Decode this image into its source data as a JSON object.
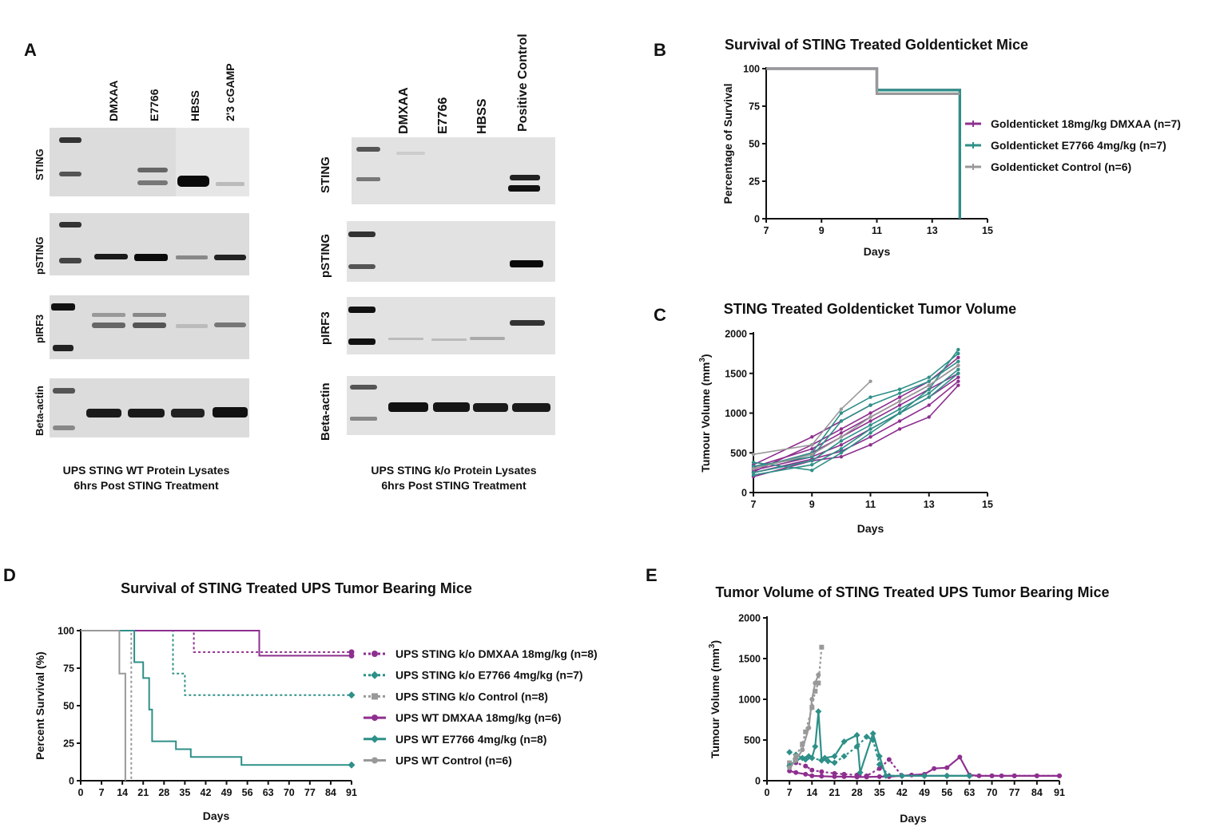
{
  "panels": {
    "a": "A",
    "b": "B",
    "c": "C",
    "d": "D",
    "e": "E"
  },
  "panel_a": {
    "left_lanes": [
      "DMXAA",
      "E7766",
      "HBSS",
      "2'3 cGAMP"
    ],
    "right_lanes": [
      "DMXAA",
      "E7766",
      "HBSS",
      "Positive  Control"
    ],
    "left_blots": [
      "STING",
      "pSTING",
      "pIRF3",
      "Beta-actin"
    ],
    "right_blots": [
      "STING",
      "pSTING",
      "pIRF3",
      "Beta-actin"
    ],
    "left_caption_1": "UPS STING WT Protein Lysates",
    "left_caption_2": "6hrs Post STING Treatment",
    "right_caption_1": "UPS STING k/o Protein Lysates",
    "right_caption_2": "6hrs Post STING Treatment"
  },
  "chart_data": [
    {
      "id": "B",
      "type": "line",
      "title": "Survival of STING Treated Goldenticket Mice",
      "xlabel": "Days",
      "ylabel": "Percentage of Survival",
      "xlim": [
        7,
        15
      ],
      "ylim": [
        0,
        100
      ],
      "xticks": [
        7,
        9,
        11,
        13,
        15
      ],
      "yticks": [
        0,
        25,
        50,
        75,
        100
      ],
      "grid": false,
      "legend": "right",
      "series": [
        {
          "name": "Goldenticket 18mg/kg DMXAA (n=7)",
          "color": "#8e2f8f",
          "x": [
            7,
            11,
            11,
            14,
            14
          ],
          "y": [
            100,
            100,
            85.7,
            85.7,
            0
          ]
        },
        {
          "name": "Goldenticket E7766 4mg/kg (n=7)",
          "color": "#2e9088",
          "x": [
            7,
            11,
            11,
            14,
            14
          ],
          "y": [
            100,
            100,
            85.7,
            85.7,
            0
          ]
        },
        {
          "name": "Goldenticket Control (n=6)",
          "color": "#999999",
          "x": [
            7,
            11,
            11,
            14
          ],
          "y": [
            100,
            100,
            83.3,
            83.3
          ]
        }
      ]
    },
    {
      "id": "C",
      "type": "line",
      "title": "STING Treated Goldenticket Tumor Volume",
      "xlabel": "Days",
      "ylabel": "Tumour Volume (mm",
      "ylabel_sup": "3",
      "ylabel_end": ")",
      "xlim": [
        7,
        15
      ],
      "ylim": [
        0,
        2000
      ],
      "xticks": [
        7,
        9,
        11,
        13,
        15
      ],
      "yticks": [
        0,
        500,
        1000,
        1500,
        2000
      ],
      "grid": false,
      "series": [
        {
          "color": "#8e2f8f",
          "x": [
            7,
            9,
            10,
            11,
            12,
            13,
            14
          ],
          "y": [
            200,
            400,
            450,
            600,
            800,
            950,
            1350
          ]
        },
        {
          "color": "#8e2f8f",
          "x": [
            7,
            9,
            10,
            11,
            12,
            13,
            14
          ],
          "y": [
            250,
            420,
            520,
            700,
            900,
            1100,
            1400
          ]
        },
        {
          "color": "#8e2f8f",
          "x": [
            7,
            9,
            10,
            11,
            12,
            13,
            14
          ],
          "y": [
            280,
            450,
            600,
            800,
            1000,
            1200,
            1450
          ]
        },
        {
          "color": "#8e2f8f",
          "x": [
            7,
            9,
            10,
            11,
            12,
            13,
            14
          ],
          "y": [
            300,
            500,
            700,
            900,
            1100,
            1300,
            1500
          ]
        },
        {
          "color": "#8e2f8f",
          "x": [
            7,
            9,
            10,
            11,
            12,
            13,
            14
          ],
          "y": [
            320,
            550,
            750,
            950,
            1150,
            1350,
            1600
          ]
        },
        {
          "color": "#8e2f8f",
          "x": [
            7,
            9,
            10,
            11
          ],
          "y": [
            350,
            700,
            900,
            1100
          ]
        },
        {
          "color": "#8e2f8f",
          "x": [
            7,
            9,
            10,
            11,
            12,
            13,
            14
          ],
          "y": [
            260,
            600,
            800,
            1000,
            1200,
            1400,
            1700
          ]
        },
        {
          "color": "#2e9088",
          "x": [
            7,
            9,
            10,
            11,
            12,
            13,
            14
          ],
          "y": [
            380,
            280,
            500,
            750,
            1000,
            1300,
            1800
          ]
        },
        {
          "color": "#2e9088",
          "x": [
            7,
            9,
            10,
            11,
            12,
            13,
            14
          ],
          "y": [
            300,
            500,
            1000,
            1200,
            1300,
            1450,
            1750
          ]
        },
        {
          "color": "#2e9088",
          "x": [
            7,
            9,
            10,
            11,
            12,
            13,
            14
          ],
          "y": [
            250,
            400,
            650,
            850,
            1050,
            1250,
            1550
          ]
        },
        {
          "color": "#2e9088",
          "x": [
            7,
            9,
            10,
            11,
            12,
            13,
            14
          ],
          "y": [
            220,
            350,
            550,
            800,
            1000,
            1200,
            1500
          ]
        },
        {
          "color": "#2e9088",
          "x": [
            7,
            9,
            10,
            11,
            12,
            13,
            14
          ],
          "y": [
            330,
            450,
            900,
            1100,
            1250,
            1400,
            1650
          ]
        },
        {
          "color": "#999999",
          "x": [
            7,
            9,
            10,
            11
          ],
          "y": [
            480,
            600,
            1050,
            1400
          ]
        },
        {
          "color": "#999999",
          "x": [
            7,
            9,
            10,
            11,
            12,
            13,
            14
          ],
          "y": [
            300,
            480,
            700,
            950,
            1150,
            1350,
            1600
          ]
        }
      ]
    },
    {
      "id": "D",
      "type": "line",
      "title": "Survival of  STING Treated UPS Tumor Bearing Mice",
      "xlabel": "Days",
      "ylabel": "Percent Survival (%)",
      "xlim": [
        0,
        91
      ],
      "ylim": [
        0,
        100
      ],
      "xticks": [
        0,
        7,
        14,
        21,
        28,
        35,
        42,
        49,
        56,
        63,
        70,
        77,
        84,
        91
      ],
      "yticks": [
        0,
        25,
        50,
        75,
        100
      ],
      "grid": false,
      "legend": "right",
      "series": [
        {
          "name": "UPS STING k/o DMXAA 18mg/kg (n=8)",
          "color": "#8e2f8f",
          "dashed": true,
          "marker": "circle",
          "x": [
            0,
            38,
            38,
            91
          ],
          "y": [
            100,
            100,
            85.7,
            85.7
          ]
        },
        {
          "name": "UPS STING k/o E7766 4mg/kg (n=7)",
          "color": "#2e9088",
          "dashed": true,
          "marker": "diamond",
          "x": [
            0,
            31,
            31,
            35,
            35,
            91
          ],
          "y": [
            100,
            100,
            71.4,
            71.4,
            57.1,
            57.1
          ]
        },
        {
          "name": "UPS STING k/o Control (n=8)",
          "color": "#999999",
          "dashed": true,
          "marker": "square",
          "x": [
            0,
            17,
            17
          ],
          "y": [
            100,
            100,
            0
          ]
        },
        {
          "name": "UPS WT DMXAA 18mg/kg (n=6)",
          "color": "#8e2f8f",
          "dashed": false,
          "marker": "circle",
          "x": [
            0,
            60,
            60,
            91
          ],
          "y": [
            100,
            100,
            83.3,
            83.3
          ]
        },
        {
          "name": "UPS WT E7766 4mg/kg (n=8)",
          "color": "#2e9088",
          "dashed": false,
          "marker": "diamond",
          "x": [
            0,
            18,
            18,
            21,
            21,
            23,
            23,
            24,
            24,
            32,
            32,
            37,
            37,
            54,
            54,
            91
          ],
          "y": [
            100,
            100,
            79,
            79,
            68.4,
            68.4,
            47.4,
            47.4,
            26.3,
            26.3,
            21,
            21,
            15.8,
            15.8,
            10.5,
            10.5
          ]
        },
        {
          "name": "UPS WT Control (n=6)",
          "color": "#999999",
          "dashed": false,
          "marker": "circle",
          "x": [
            0,
            13,
            13,
            15,
            15
          ],
          "y": [
            100,
            100,
            71.4,
            71.4,
            0
          ]
        }
      ]
    },
    {
      "id": "E",
      "type": "line",
      "title": "Tumor Volume of  STING Treated UPS Tumor Bearing Mice",
      "xlabel": "Days",
      "ylabel": "Tumour Volume (mm",
      "ylabel_sup": "3",
      "ylabel_end": ")",
      "xlim": [
        0,
        91
      ],
      "ylim": [
        0,
        2000
      ],
      "xticks": [
        0,
        7,
        14,
        21,
        28,
        35,
        42,
        49,
        56,
        63,
        70,
        77,
        84,
        91
      ],
      "yticks": [
        0,
        500,
        1000,
        1500,
        2000
      ],
      "grid": false,
      "series": [
        {
          "name": "UPS STING k/o DMXAA 18mg/kg (n=8)",
          "color": "#8e2f8f",
          "dashed": true,
          "marker": "circle",
          "x": [
            7,
            9,
            12,
            14,
            17,
            21,
            24,
            28,
            31,
            35,
            38,
            42,
            49,
            56,
            63,
            70,
            77,
            84,
            91
          ],
          "y": [
            200,
            220,
            180,
            130,
            110,
            90,
            80,
            70,
            60,
            150,
            260,
            60,
            60,
            60,
            60,
            60,
            60,
            60,
            60
          ]
        },
        {
          "name": "UPS STING k/o E7766 4mg/kg (n=7)",
          "color": "#2e9088",
          "dashed": true,
          "marker": "diamond",
          "x": [
            7,
            9,
            12,
            14,
            17,
            19,
            21,
            24,
            28,
            31,
            33,
            35,
            38,
            42,
            49,
            56,
            63
          ],
          "y": [
            350,
            320,
            260,
            280,
            250,
            240,
            220,
            300,
            420,
            540,
            500,
            200,
            60,
            60,
            60,
            60,
            60
          ]
        },
        {
          "name": "UPS STING k/o Control (n=8)",
          "color": "#999999",
          "dashed": true,
          "marker": "square",
          "x": [
            7,
            9,
            11,
            12,
            14,
            15,
            16,
            17
          ],
          "y": [
            220,
            300,
            450,
            600,
            900,
            1100,
            1200,
            1640
          ]
        },
        {
          "name": "UPS WT DMXAA 18mg/kg (n=6)",
          "color": "#8e2f8f",
          "dashed": false,
          "marker": "circle",
          "x": [
            7,
            9,
            12,
            14,
            17,
            21,
            24,
            28,
            31,
            35,
            38,
            42,
            45,
            49,
            52,
            56,
            60,
            63,
            66,
            70,
            73,
            77,
            84,
            91
          ],
          "y": [
            120,
            100,
            80,
            60,
            55,
            50,
            50,
            45,
            45,
            50,
            50,
            60,
            70,
            80,
            150,
            160,
            290,
            70,
            60,
            60,
            60,
            60,
            60,
            60
          ]
        },
        {
          "name": "UPS WT E7766 4mg/kg (n=8)",
          "color": "#2e9088",
          "dashed": false,
          "marker": "diamond",
          "x": [
            7,
            9,
            11,
            13,
            14,
            15,
            16,
            17,
            18,
            21,
            24,
            28,
            29,
            33,
            35,
            37,
            42,
            49,
            56,
            63
          ],
          "y": [
            180,
            250,
            280,
            300,
            280,
            420,
            850,
            250,
            280,
            300,
            480,
            560,
            100,
            580,
            300,
            60,
            60,
            60,
            60,
            60
          ]
        },
        {
          "name": "UPS WT Control (n=6)",
          "color": "#999999",
          "dashed": false,
          "marker": "circle",
          "x": [
            7,
            9,
            11,
            13,
            14,
            15,
            16
          ],
          "y": [
            160,
            250,
            380,
            650,
            1000,
            1200,
            1300
          ]
        }
      ]
    }
  ]
}
